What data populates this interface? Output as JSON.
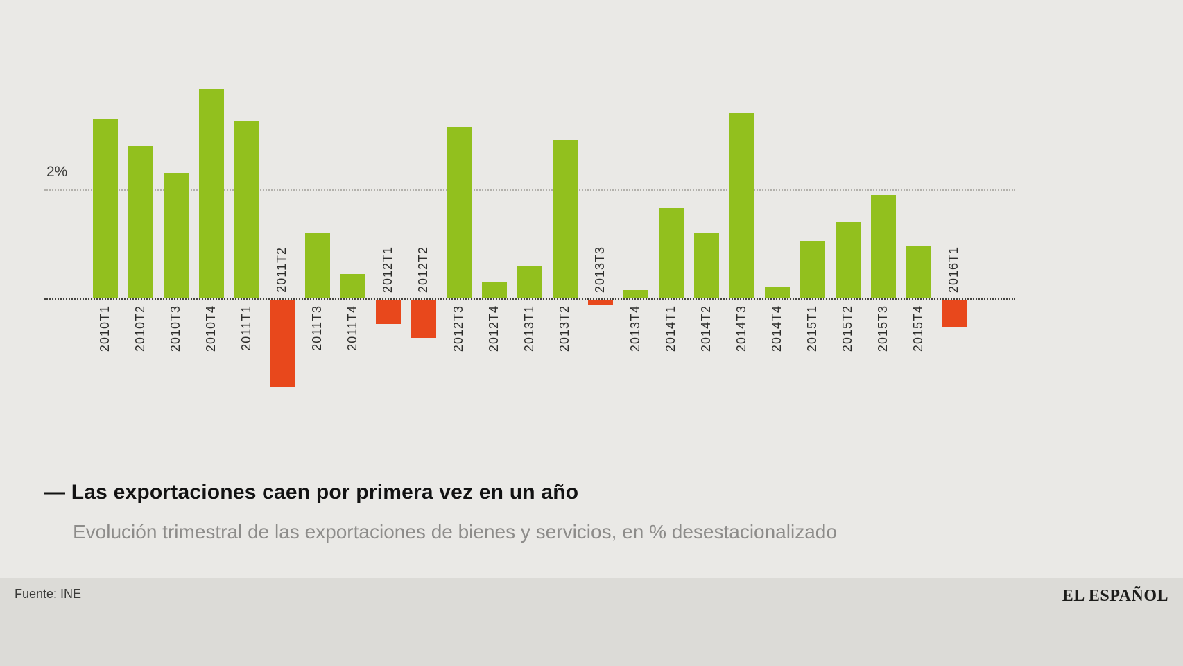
{
  "chart_data": {
    "type": "bar",
    "title": "Las exportaciones caen por primera vez en un año",
    "subtitle": "Evolución trimestral de las exportaciones de bienes y servicios, en % desestacionalizado",
    "unit": "%",
    "categories": [
      "2010T1",
      "2010T2",
      "2010T3",
      "2010T4",
      "2011T1",
      "2011T2",
      "2011T3",
      "2011T4",
      "2012T1",
      "2012T2",
      "2012T3",
      "2012T4",
      "2013T1",
      "2013T2",
      "2013T3",
      "2013T4",
      "2014T1",
      "2014T2",
      "2014T3",
      "2014T4",
      "2015T1",
      "2015T2",
      "2015T3",
      "2015T4",
      "2016T1"
    ],
    "values": [
      3.3,
      2.8,
      2.3,
      3.85,
      3.25,
      -1.6,
      1.2,
      0.45,
      -0.45,
      -0.7,
      3.15,
      0.3,
      0.6,
      2.9,
      -0.1,
      0.15,
      1.65,
      1.2,
      3.4,
      0.2,
      1.05,
      1.4,
      1.9,
      0.95,
      -0.5
    ],
    "xlabel": "",
    "ylabel": "",
    "ylim": [
      -2,
      4
    ],
    "baseline_value": 0,
    "gridline": {
      "value": 2,
      "label": "2%"
    },
    "legend": "none",
    "positive_color": "#92c01e",
    "negative_color": "#e8481c"
  },
  "caption": {
    "dash": "—",
    "title": "Las exportaciones caen por primera vez en un año",
    "subtitle": "Evolución trimestral de las exportaciones de bienes y servicios, en % desestacionalizado"
  },
  "footer": {
    "source": "Fuente: INE",
    "brand": "EL ESPAÑOL"
  }
}
